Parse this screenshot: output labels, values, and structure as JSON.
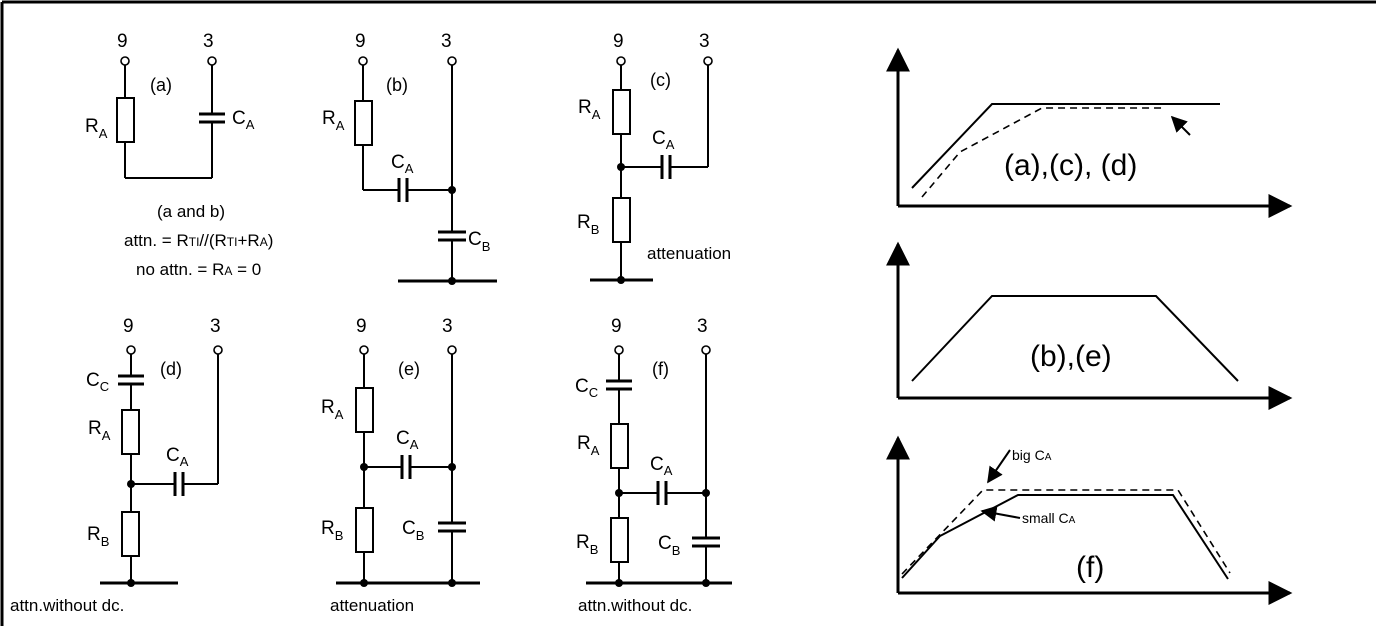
{
  "pins": {
    "p9": "9",
    "p3": "3"
  },
  "components": {
    "ra_main": "R",
    "ra_sub": "A",
    "rb_main": "R",
    "rb_sub": "B",
    "ca_main": "C",
    "ca_sub": "A",
    "cb_main": "C",
    "cb_sub": "B",
    "cc_main": "C",
    "cc_sub": "C"
  },
  "panels": {
    "a": {
      "tag": "(a)"
    },
    "b": {
      "tag": "(b)"
    },
    "c": {
      "tag": "(c)",
      "caption": "attenuation"
    },
    "d": {
      "tag": "(d)",
      "caption": "attn.without dc."
    },
    "e": {
      "tag": "(e)",
      "caption": "attenuation"
    },
    "f": {
      "tag": "(f)",
      "caption": "attn.without dc."
    }
  },
  "notes": {
    "ab_title": "(a and b)",
    "attn_pre": "attn. = R",
    "attn_sub1": "TI",
    "attn_mid": "//(R",
    "attn_sub2": "TI",
    "attn_plus": "+R",
    "attn_sub3": "A",
    "attn_end": ")",
    "noattn_pre": "no attn. = R",
    "noattn_sub": "A",
    "noattn_end": " = 0"
  },
  "graphs": {
    "g1_label": "(a),(c),  (d)",
    "g2_label": "(b),(e)",
    "g3_label": "(f)",
    "big_pre": "big C",
    "big_sub": "A",
    "small_pre": "small C",
    "small_sub": "A"
  }
}
